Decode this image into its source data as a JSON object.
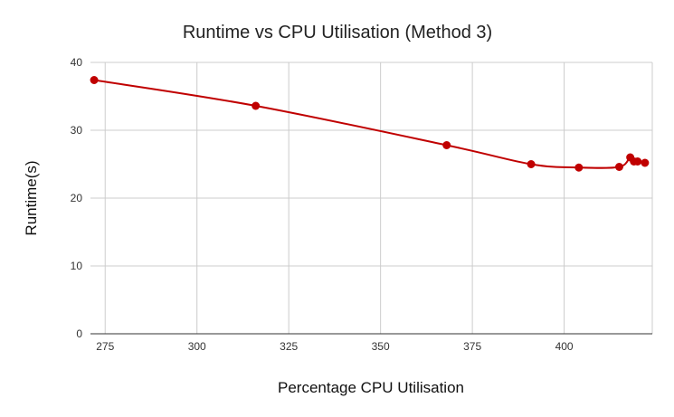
{
  "chart_data": {
    "type": "line",
    "title": "Runtime vs CPU Utilisation (Method 3)",
    "xlabel": "Percentage CPU Utilisation",
    "ylabel": "Runtime(s)",
    "xlim": [
      271,
      424
    ],
    "ylim": [
      0,
      40
    ],
    "x_ticks": [
      275,
      300,
      325,
      350,
      375,
      400
    ],
    "y_ticks": [
      0,
      10,
      20,
      30,
      40
    ],
    "grid": true,
    "legend": "none",
    "line_color": "#c00000",
    "series": [
      {
        "x": [
          272,
          316,
          368,
          391,
          404,
          415,
          418,
          419,
          420,
          422
        ],
        "y": [
          37.4,
          33.6,
          27.8,
          25.0,
          24.5,
          24.6,
          26.0,
          25.4,
          25.4,
          25.2
        ]
      }
    ]
  }
}
